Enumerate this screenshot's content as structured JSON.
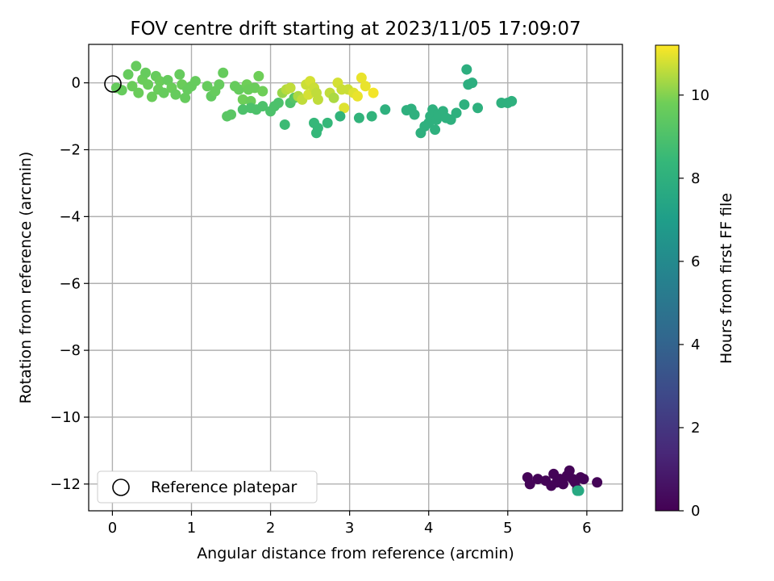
{
  "chart_data": {
    "type": "scatter",
    "title": "FOV centre drift starting at 2023/11/05 17:09:07",
    "xlabel": "Angular distance from reference (arcmin)",
    "ylabel": "Rotation from reference (arcmin)",
    "xlim": [
      -0.3,
      6.45
    ],
    "ylim": [
      -12.8,
      1.15
    ],
    "xticks": [
      "0",
      "1",
      "2",
      "3",
      "4",
      "5",
      "6"
    ],
    "yticks": [
      "0",
      "−2",
      "−4",
      "−6",
      "−8",
      "−10",
      "−12"
    ],
    "grid": true,
    "legend": {
      "location": "lower-left",
      "entries": [
        "Reference platepar"
      ]
    },
    "colorbar": {
      "label": "Hours from first FF file",
      "range": [
        0,
        11.2
      ],
      "ticks": [
        "0",
        "2",
        "4",
        "6",
        "8",
        "10"
      ],
      "colormap": "viridis"
    },
    "reference_point": {
      "x": 0,
      "y": 0
    },
    "series": [
      {
        "points": [
          [
            0.05,
            -0.15,
            9.6
          ],
          [
            0.12,
            -0.22,
            9.6
          ],
          [
            0.2,
            0.25,
            9.6
          ],
          [
            0.25,
            -0.1,
            9.7
          ],
          [
            0.3,
            0.5,
            9.6
          ],
          [
            0.33,
            -0.3,
            9.7
          ],
          [
            0.38,
            0.1,
            9.7
          ],
          [
            0.42,
            0.3,
            9.6
          ],
          [
            0.45,
            -0.05,
            9.7
          ],
          [
            0.5,
            -0.42,
            9.7
          ],
          [
            0.55,
            0.2,
            9.6
          ],
          [
            0.58,
            -0.2,
            9.7
          ],
          [
            0.6,
            0.05,
            9.7
          ],
          [
            0.65,
            -0.3,
            9.6
          ],
          [
            0.7,
            0.08,
            9.6
          ],
          [
            0.75,
            -0.15,
            9.7
          ],
          [
            0.8,
            -0.35,
            9.6
          ],
          [
            0.85,
            0.25,
            9.6
          ],
          [
            0.88,
            -0.05,
            9.7
          ],
          [
            0.92,
            -0.45,
            9.6
          ],
          [
            0.95,
            -0.2,
            9.6
          ],
          [
            1.0,
            -0.1,
            9.6
          ],
          [
            1.05,
            0.05,
            9.6
          ],
          [
            1.2,
            -0.1,
            9.6
          ],
          [
            1.25,
            -0.4,
            9.5
          ],
          [
            1.3,
            -0.25,
            9.6
          ],
          [
            1.35,
            -0.05,
            9.6
          ],
          [
            1.4,
            0.3,
            9.6
          ],
          [
            1.45,
            -1.0,
            9.3
          ],
          [
            1.5,
            -0.95,
            9.3
          ],
          [
            1.55,
            -0.1,
            9.6
          ],
          [
            1.6,
            -0.2,
            9.6
          ],
          [
            1.65,
            -0.5,
            9.8
          ],
          [
            1.7,
            -0.05,
            9.8
          ],
          [
            1.72,
            -0.2,
            9.7
          ],
          [
            1.75,
            -0.55,
            9.7
          ],
          [
            1.8,
            -0.15,
            9.7
          ],
          [
            1.85,
            0.2,
            9.8
          ],
          [
            1.9,
            -0.25,
            9.8
          ],
          [
            1.65,
            -0.8,
            9.0
          ],
          [
            1.75,
            -0.75,
            9.0
          ],
          [
            1.82,
            -0.8,
            9.0
          ],
          [
            1.9,
            -0.7,
            9.0
          ],
          [
            2.0,
            -0.85,
            9.0
          ],
          [
            2.05,
            -0.7,
            9.0
          ],
          [
            2.1,
            -0.6,
            9.0
          ],
          [
            2.18,
            -1.25,
            8.6
          ],
          [
            2.25,
            -0.6,
            9.0
          ],
          [
            2.3,
            -0.45,
            9.2
          ],
          [
            2.15,
            -0.3,
            10.2
          ],
          [
            2.2,
            -0.2,
            10.5
          ],
          [
            2.25,
            -0.15,
            10.6
          ],
          [
            2.35,
            -0.4,
            10.4
          ],
          [
            2.4,
            -0.5,
            10.6
          ],
          [
            2.45,
            -0.05,
            10.7
          ],
          [
            2.48,
            -0.35,
            10.8
          ],
          [
            2.5,
            0.05,
            10.8
          ],
          [
            2.55,
            -0.15,
            10.7
          ],
          [
            2.58,
            -0.3,
            10.6
          ],
          [
            2.6,
            -0.5,
            10.6
          ],
          [
            2.55,
            -1.2,
            8.4
          ],
          [
            2.6,
            -1.35,
            8.4
          ],
          [
            2.58,
            -1.5,
            8.4
          ],
          [
            2.72,
            -1.2,
            8.4
          ],
          [
            2.75,
            -0.3,
            10.6
          ],
          [
            2.8,
            -0.45,
            10.4
          ],
          [
            2.85,
            -0.0,
            10.8
          ],
          [
            2.9,
            -0.2,
            10.7
          ],
          [
            2.93,
            -0.75,
            10.9
          ],
          [
            2.98,
            -0.2,
            10.7
          ],
          [
            3.05,
            -0.3,
            10.9
          ],
          [
            3.1,
            -0.4,
            11.0
          ],
          [
            3.15,
            0.15,
            11.0
          ],
          [
            3.2,
            -0.1,
            11.0
          ],
          [
            3.3,
            -0.3,
            11.1
          ],
          [
            3.12,
            -1.05,
            8.2
          ],
          [
            3.28,
            -1.0,
            8.2
          ],
          [
            2.88,
            -1.0,
            8.2
          ],
          [
            3.45,
            -0.8,
            8.0
          ],
          [
            3.72,
            -0.82,
            8.0
          ],
          [
            3.78,
            -0.78,
            8.0
          ],
          [
            3.82,
            -0.95,
            8.0
          ],
          [
            3.9,
            -1.5,
            8.0
          ],
          [
            3.95,
            -1.3,
            8.0
          ],
          [
            4.0,
            -1.2,
            8.0
          ],
          [
            4.02,
            -1.0,
            8.0
          ],
          [
            4.05,
            -0.8,
            8.0
          ],
          [
            4.08,
            -1.4,
            8.0
          ],
          [
            4.1,
            -1.1,
            8.0
          ],
          [
            4.12,
            -0.95,
            8.0
          ],
          [
            4.18,
            -0.85,
            8.0
          ],
          [
            4.22,
            -1.05,
            8.0
          ],
          [
            4.28,
            -1.1,
            8.0
          ],
          [
            4.35,
            -0.9,
            8.0
          ],
          [
            4.45,
            -0.65,
            8.0
          ],
          [
            4.48,
            0.4,
            7.9
          ],
          [
            4.5,
            -0.05,
            7.9
          ],
          [
            4.55,
            0.0,
            7.9
          ],
          [
            4.62,
            -0.75,
            8.0
          ],
          [
            4.92,
            -0.6,
            8.0
          ],
          [
            5.0,
            -0.6,
            8.0
          ],
          [
            5.05,
            -0.55,
            8.0
          ],
          [
            5.25,
            -11.8,
            0.1
          ],
          [
            5.28,
            -12.0,
            0.1
          ],
          [
            5.38,
            -11.85,
            0.1
          ],
          [
            5.48,
            -11.9,
            0.1
          ],
          [
            5.55,
            -12.05,
            0.1
          ],
          [
            5.58,
            -11.7,
            0.1
          ],
          [
            5.62,
            -11.95,
            0.1
          ],
          [
            5.66,
            -11.85,
            0.1
          ],
          [
            5.7,
            -12.0,
            0.1
          ],
          [
            5.75,
            -11.75,
            0.1
          ],
          [
            5.78,
            -11.6,
            0.1
          ],
          [
            5.82,
            -11.85,
            0.1
          ],
          [
            5.85,
            -11.95,
            0.1
          ],
          [
            5.88,
            -12.15,
            0.1
          ],
          [
            5.92,
            -11.8,
            0.1
          ],
          [
            5.96,
            -11.85,
            0.1
          ],
          [
            6.13,
            -11.95,
            0.1
          ],
          [
            5.88,
            -12.2,
            7.6
          ],
          [
            5.9,
            -12.2,
            7.6
          ]
        ]
      }
    ]
  }
}
